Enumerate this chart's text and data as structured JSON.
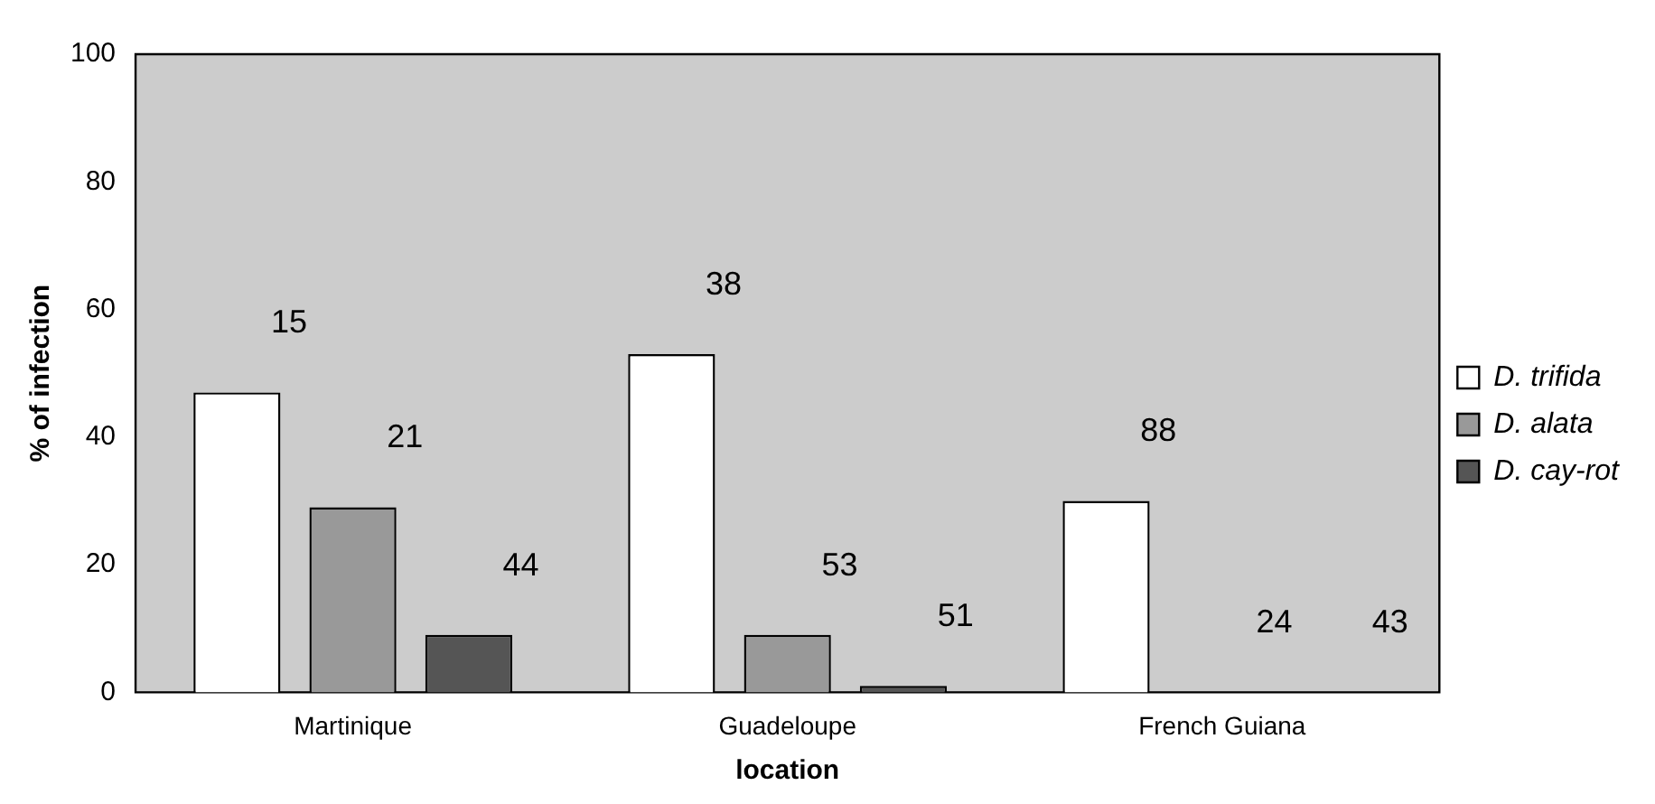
{
  "chart_data": {
    "type": "bar",
    "xlabel": "location",
    "ylabel": "% of infection",
    "categories": [
      "Martinique",
      "Guadeloupe",
      "French Guiana"
    ],
    "series": [
      {
        "name": "D. trifida",
        "color": "#ffffff",
        "values": [
          47,
          53,
          30
        ]
      },
      {
        "name": "D. alata",
        "color": "#999999",
        "values": [
          29,
          9,
          0
        ]
      },
      {
        "name": "D. cay-rot",
        "color": "#555555",
        "values": [
          9,
          1,
          0
        ]
      }
    ],
    "annotations": [
      "15",
      "21",
      "44",
      "38",
      "53",
      "51",
      "88",
      "24",
      "43"
    ],
    "ylim": [
      0,
      100
    ],
    "yticks": [
      0,
      20,
      40,
      60,
      80,
      100
    ],
    "grid": false,
    "legend": "right"
  }
}
